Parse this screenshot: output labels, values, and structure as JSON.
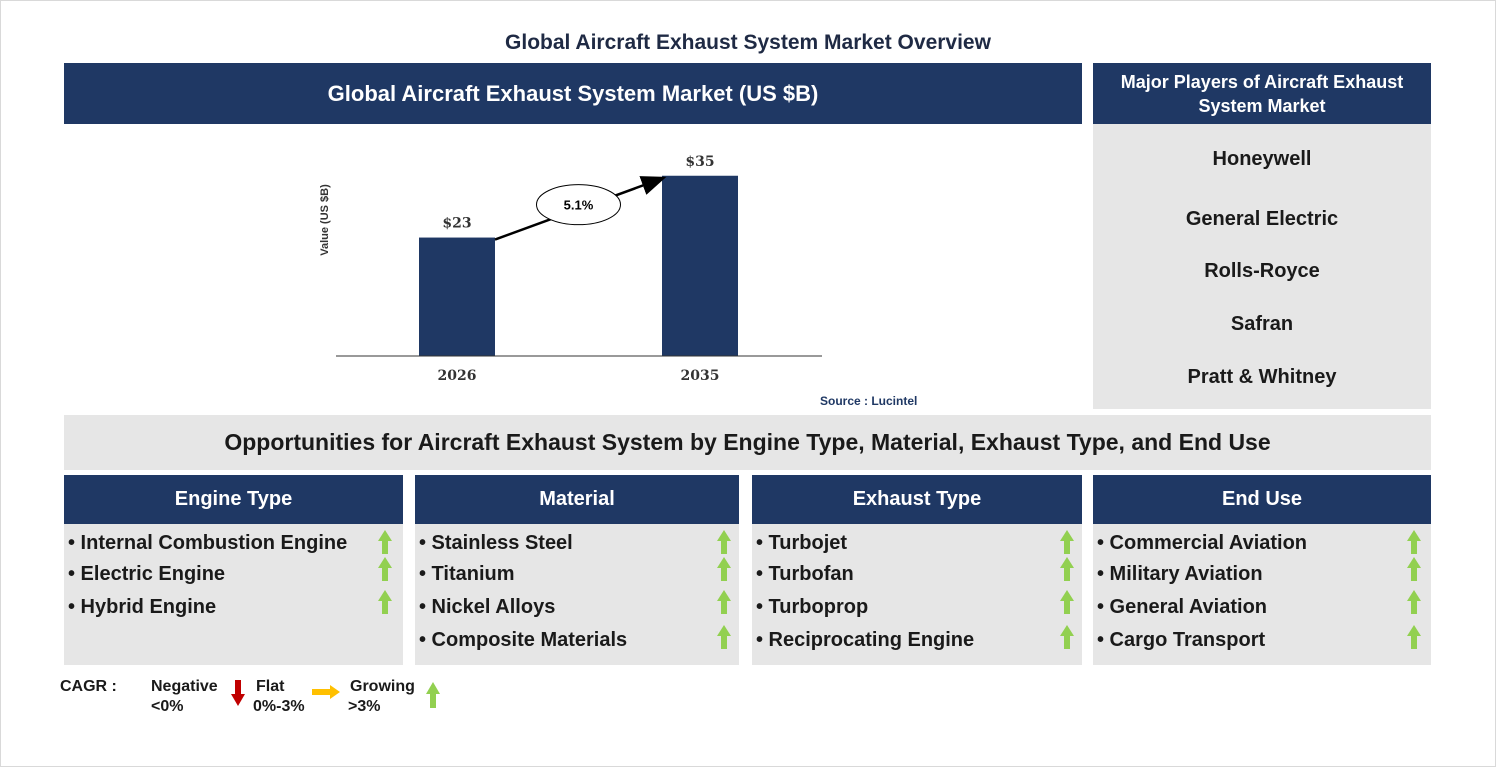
{
  "page_title": "Global Aircraft Exhaust System Market Overview",
  "chart_header": "Global Aircraft Exhaust System Market (US $B)",
  "chart_data": {
    "type": "bar",
    "categories": [
      "2026",
      "2035"
    ],
    "values": [
      23,
      35
    ],
    "value_labels": [
      "$23",
      "$35"
    ],
    "ylabel": "Value (US $B)",
    "ylim": [
      0,
      40
    ],
    "cagr_label": "5.1%",
    "bar_color": "#1f3864",
    "grid": false
  },
  "source": "Source : Lucintel",
  "players": {
    "title": "Major Players of Aircraft Exhaust System Market",
    "items": [
      "Honeywell",
      "General Electric",
      "Rolls-Royce",
      "Safran",
      "Pratt & Whitney"
    ]
  },
  "opportunities_title": "Opportunities for Aircraft Exhaust System by Engine Type, Material, Exhaust Type, and End Use",
  "segments": [
    {
      "title": "Engine Type",
      "items": [
        "• Internal Combustion Engine",
        "• Electric Engine",
        "• Hybrid Engine"
      ]
    },
    {
      "title": "Material",
      "items": [
        "• Stainless Steel",
        "• Titanium",
        "• Nickel Alloys",
        "• Composite Materials"
      ]
    },
    {
      "title": "Exhaust Type",
      "items": [
        "• Turbojet",
        "• Turbofan",
        "• Turboprop",
        "• Reciprocating Engine"
      ]
    },
    {
      "title": "End Use",
      "items": [
        "• Commercial Aviation",
        "• Military Aviation",
        "• General Aviation",
        "• Cargo Transport"
      ]
    }
  ],
  "legend": {
    "cagr": "CAGR :",
    "negative": "Negative",
    "negative_range": "<0%",
    "flat": "Flat",
    "flat_range": "0%-3%",
    "growing": "Growing",
    "growing_range": ">3%"
  },
  "colors": {
    "navy": "#1f3864",
    "grey_panel": "#e6e6e6",
    "growth_green": "#92d050",
    "negative_red": "#c00000",
    "flat_yellow": "#ffc000"
  },
  "icons": {
    "growth": "green-up-arrow-icon",
    "negative": "red-down-arrow-icon",
    "flat": "yellow-right-arrow-icon"
  }
}
